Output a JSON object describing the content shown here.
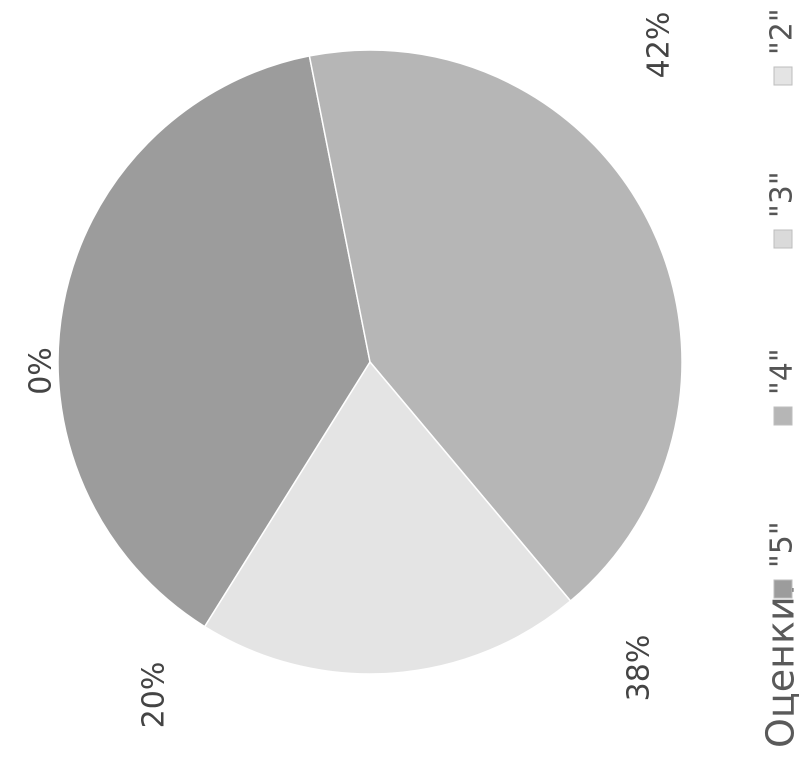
{
  "chart_data": {
    "type": "pie",
    "slices": [
      {
        "label": "\"5\"",
        "value": 38,
        "display": "38%",
        "color": "#9c9c9c"
      },
      {
        "label": "\"4\"",
        "value": 42,
        "display": "42%",
        "color": "#b6b6b6"
      },
      {
        "label": "\"3\"",
        "value": 0,
        "display": "0%",
        "color": "#dadada"
      },
      {
        "label": "\"2\"",
        "value": 20,
        "display": "20%",
        "color": "#e4e4e4"
      }
    ],
    "legend": {
      "title": "Оценки:",
      "placement": "bottom",
      "entries": [
        "\"5\"",
        "\"4\"",
        "\"3\"",
        "\"2\""
      ]
    },
    "text_orientation": "rotated 90° counter-clockwise"
  }
}
